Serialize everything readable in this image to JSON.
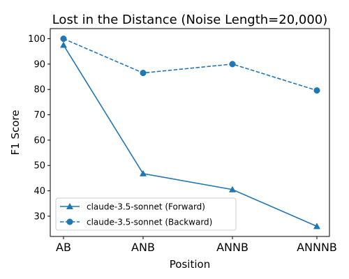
{
  "chart_data": {
    "type": "line",
    "title": "Lost in the Distance (Noise Length=20,000)",
    "xlabel": "Position",
    "ylabel": "F1 Score",
    "categories": [
      "AB",
      "ANB",
      "ANNB",
      "ANNNB"
    ],
    "ylim": [
      22,
      104
    ],
    "yticks": [
      30,
      40,
      50,
      60,
      70,
      80,
      90,
      100
    ],
    "grid": false,
    "legend_position": "lower-left",
    "series": [
      {
        "name": "claude-3.5-sonnet (Forward)",
        "values": [
          97.5,
          46.8,
          40.5,
          26.0
        ],
        "line_style": "solid",
        "marker": "triangle",
        "color": "#1f77b4"
      },
      {
        "name": "claude-3.5-sonnet (Backward)",
        "values": [
          100.0,
          86.5,
          90.0,
          79.6
        ],
        "line_style": "dashed",
        "marker": "circle",
        "color": "#1f77b4"
      }
    ]
  }
}
